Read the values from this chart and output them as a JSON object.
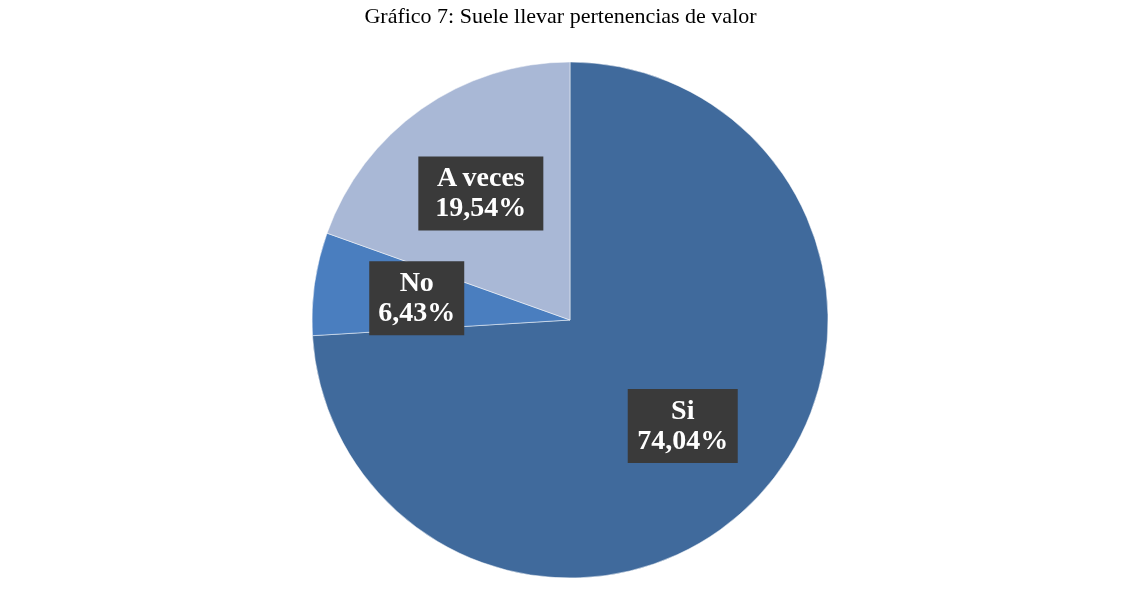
{
  "chart_data": {
    "type": "pie",
    "title": "Gráfico 7: Suele llevar pertenencias de valor",
    "categories": [
      "Si",
      "No",
      "A veces"
    ],
    "values": [
      74.04,
      6.43,
      19.54
    ],
    "colors": [
      "#406a9c",
      "#4a7ebf",
      "#a9b8d6"
    ],
    "value_labels": [
      "74,04%",
      "6,43%",
      "19,54%"
    ],
    "legend": false
  }
}
